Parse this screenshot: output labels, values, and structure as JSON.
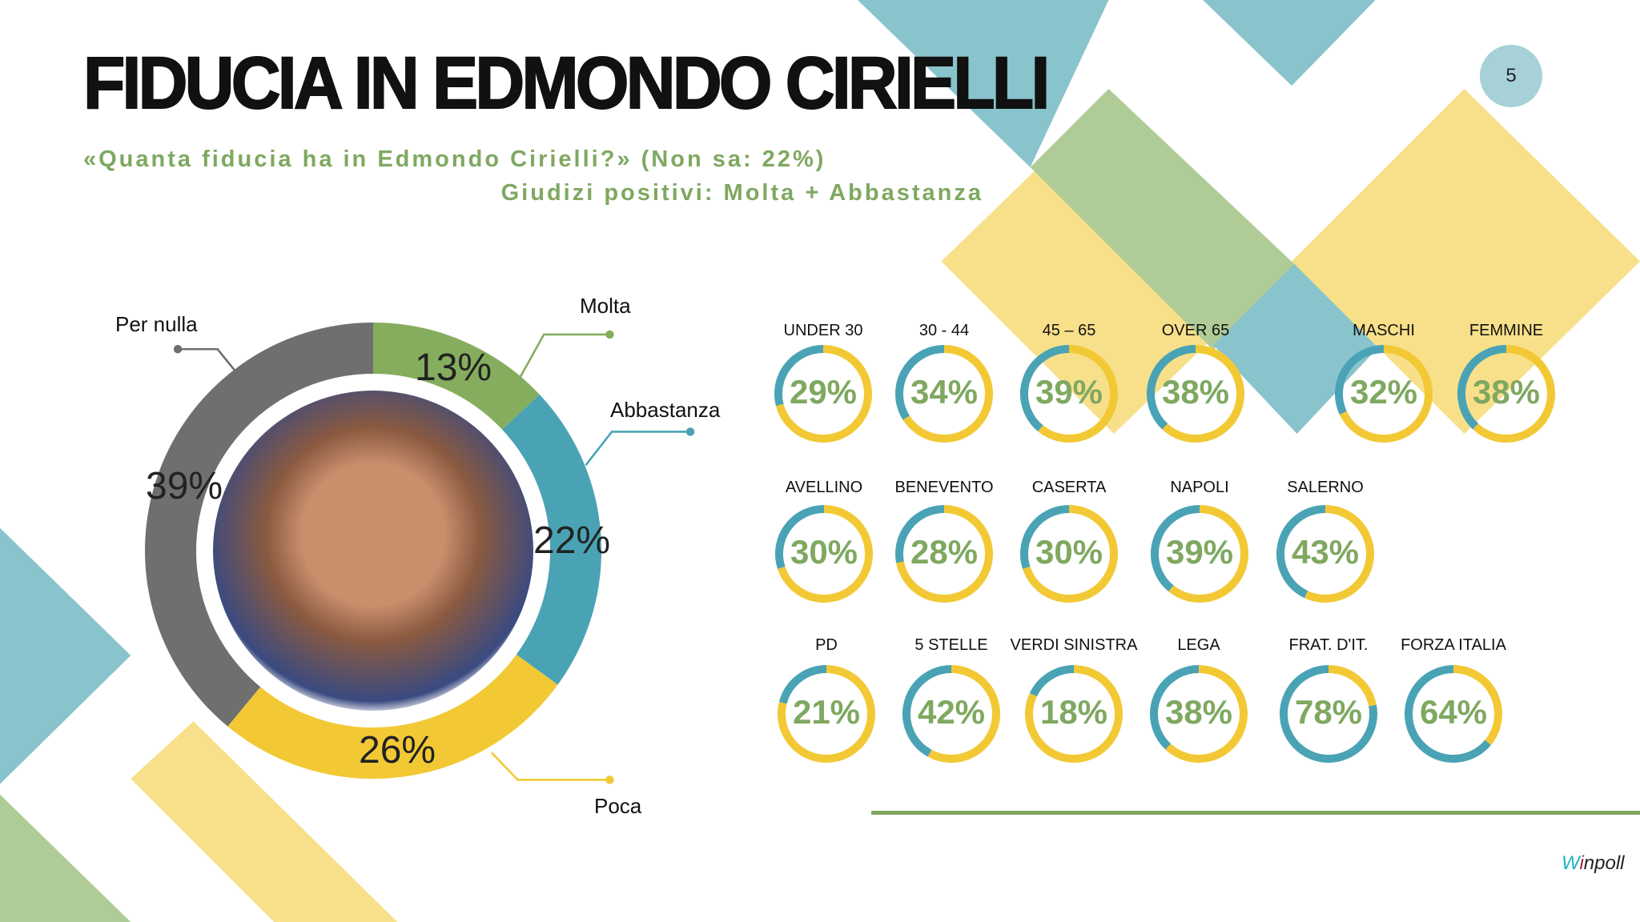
{
  "title": "FIDUCIA IN EDMONDO CIRIELLI",
  "subtitle1": "«Quanta fiducia ha in Edmondo Cirielli?» (Non sa: 22%)",
  "subtitle2": "Giudizi positivi: Molta + Abbastanza",
  "page_number": "5",
  "logo_text": "Winpoll",
  "colors": {
    "molta": "#86ad5e",
    "abbastanza": "#4aa3b5",
    "poca": "#f2c935",
    "per_nulla": "#6f6f6f",
    "ring_pos": "#4aa3b5",
    "ring_rest": "#f2c935",
    "value": "#7fa860"
  },
  "chart_data": [
    {
      "type": "pie",
      "variant": "donut",
      "title": "Quanta fiducia ha in Edmondo Cirielli?",
      "slices": [
        {
          "label": "Molta",
          "value": 13,
          "text": "13%"
        },
        {
          "label": "Abbastanza",
          "value": 22,
          "text": "22%"
        },
        {
          "label": "Poca",
          "value": 26,
          "text": "26%"
        },
        {
          "label": "Per nulla",
          "value": 39,
          "text": "39%"
        }
      ]
    },
    {
      "type": "pie",
      "variant": "ring-gauges",
      "title": "Giudizi positivi: Molta + Abbastanza",
      "groups": [
        [
          {
            "label": "UNDER 30",
            "value": 29,
            "text": "29%"
          },
          {
            "label": "30 - 44",
            "value": 34,
            "text": "34%"
          },
          {
            "label": "45 – 65",
            "value": 39,
            "text": "39%"
          },
          {
            "label": "OVER 65",
            "value": 38,
            "text": "38%"
          },
          {
            "label": "MASCHI",
            "value": 32,
            "text": "32%"
          },
          {
            "label": "FEMMINE",
            "value": 38,
            "text": "38%"
          }
        ],
        [
          {
            "label": "AVELLINO",
            "value": 30,
            "text": "30%"
          },
          {
            "label": "BENEVENTO",
            "value": 28,
            "text": "28%"
          },
          {
            "label": "CASERTA",
            "value": 30,
            "text": "30%"
          },
          {
            "label": "NAPOLI",
            "value": 39,
            "text": "39%"
          },
          {
            "label": "SALERNO",
            "value": 43,
            "text": "43%"
          }
        ],
        [
          {
            "label": "PD",
            "value": 21,
            "text": "21%"
          },
          {
            "label": "5 STELLE",
            "value": 42,
            "text": "42%"
          },
          {
            "label": "VERDI SINISTRA",
            "value": 18,
            "text": "18%"
          },
          {
            "label": "LEGA",
            "value": 38,
            "text": "38%"
          },
          {
            "label": "FRAT. D'IT.",
            "value": 78,
            "text": "78%"
          },
          {
            "label": "FORZA ITALIA",
            "value": 64,
            "text": "64%"
          }
        ]
      ]
    }
  ]
}
